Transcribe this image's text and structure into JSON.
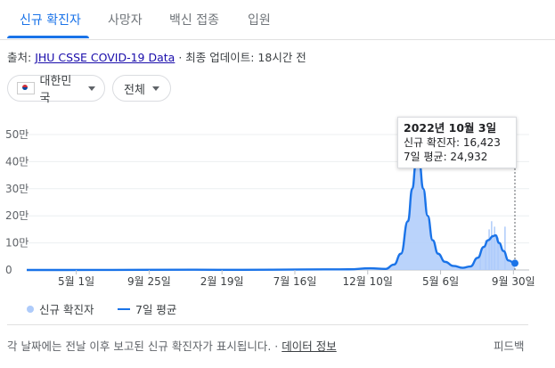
{
  "tabs": [
    {
      "label": "신규 확진자",
      "active": true
    },
    {
      "label": "사망자",
      "active": false
    },
    {
      "label": "백신 접종",
      "active": false
    },
    {
      "label": "입원",
      "active": false
    }
  ],
  "source": {
    "prefix": "출처:",
    "link": "JHU CSSE COVID-19 Data",
    "update": "· 최종 업데이트: 18시간 전"
  },
  "filters": {
    "region": "대한민국",
    "range": "전체"
  },
  "tooltip": {
    "date": "2022년 10월 3일",
    "new_cases": "신규 확진자: 16,423",
    "avg7": "7일 평균: 24,932"
  },
  "legend": {
    "bars": "신규 확진자",
    "line": "7일 평균"
  },
  "footer": {
    "note": "각 날짜에는 전날 이후 보고된 신규 확진자가 표시됩니다. ·",
    "link": "데이터 정보",
    "feedback": "피드백"
  },
  "colors": {
    "accent": "#1a73e8",
    "bars": "#aecbfa"
  },
  "chart_data": {
    "type": "area",
    "title": "",
    "xlabel": "",
    "ylabel": "",
    "ylim": [
      0,
      500000
    ],
    "y_ticks": [
      "0",
      "10만",
      "20만",
      "30만",
      "40만",
      "50만"
    ],
    "x_ticks": [
      "5월 1일",
      "9월 25일",
      "2월 19일",
      "7월 16일",
      "12월 10일",
      "5월 6일",
      "9월 30일"
    ],
    "grid": true,
    "series": [
      {
        "name": "7일 평균",
        "x": [
          "2020-01-22",
          "2020-06-01",
          "2020-12-25",
          "2021-04-01",
          "2021-08-01",
          "2021-11-01",
          "2021-12-15",
          "2022-01-15",
          "2022-02-01",
          "2022-02-15",
          "2022-03-01",
          "2022-03-10",
          "2022-03-17",
          "2022-03-24",
          "2022-04-01",
          "2022-04-10",
          "2022-04-20",
          "2022-05-01",
          "2022-05-15",
          "2022-06-01",
          "2022-06-20",
          "2022-07-05",
          "2022-07-20",
          "2022-08-01",
          "2022-08-10",
          "2022-08-20",
          "2022-08-25",
          "2022-09-01",
          "2022-09-10",
          "2022-09-20",
          "2022-10-03"
        ],
        "values": [
          0,
          50,
          1000,
          500,
          1800,
          2500,
          6500,
          4000,
          20000,
          60000,
          180000,
          300000,
          390000,
          400000,
          300000,
          200000,
          110000,
          60000,
          30000,
          15000,
          8000,
          13000,
          45000,
          85000,
          110000,
          125000,
          128000,
          100000,
          70000,
          35000,
          24932
        ]
      }
    ]
  }
}
